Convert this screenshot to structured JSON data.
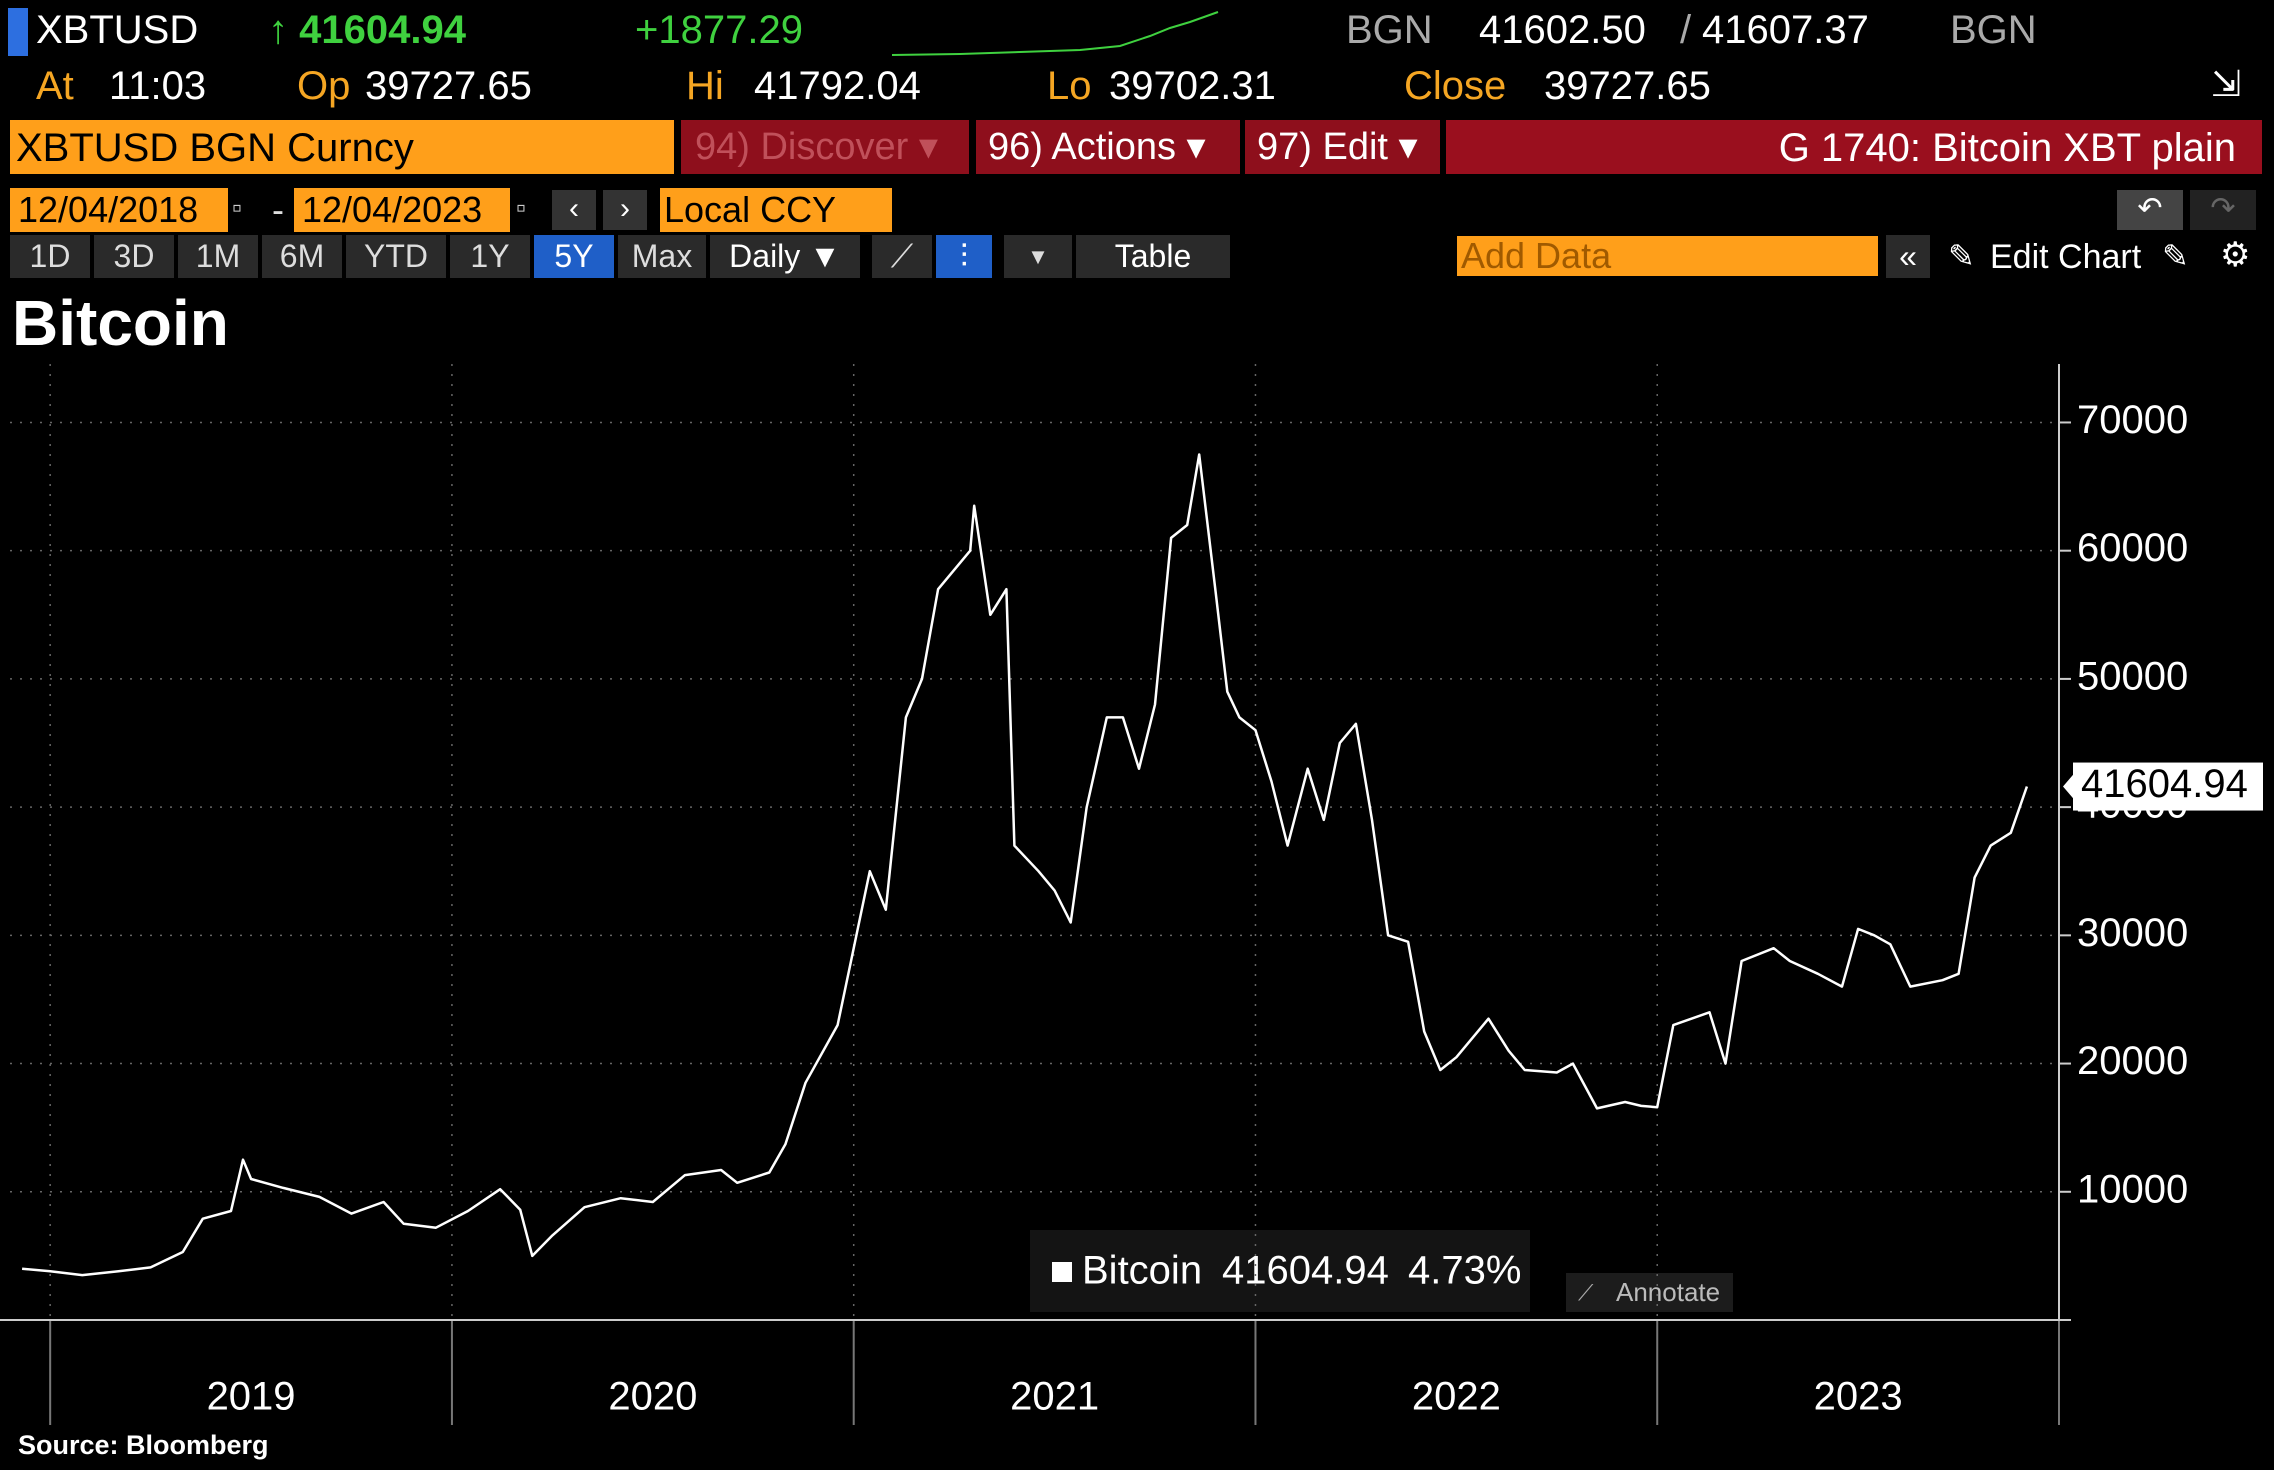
{
  "header": {
    "symbol": "XBTUSD",
    "last": "↑ 41604.94",
    "change": "+1877.29",
    "source": "BGN",
    "bid": "41602.50",
    "separator": "/",
    "ask": "41607.37",
    "source2": "BGN",
    "time_label": "At",
    "time": "11:03",
    "open_label": "Op",
    "open": "39727.65",
    "hi_label": "Hi",
    "hi": "41792.04",
    "lo_label": "Lo",
    "lo": "39702.31",
    "close_label": "Close",
    "close": "39727.65"
  },
  "toolbar": {
    "security": "XBTUSD BGN Curncy",
    "discover": "94) Discover ▾",
    "actions": "96) Actions ▾",
    "edit": "97) Edit ▾",
    "chart_name": "G 1740: Bitcoin XBT plain",
    "date_start": "12/04/2018",
    "date_dash": "-",
    "date_end": "12/04/2023",
    "currency": "Local CCY",
    "ranges": [
      "1D",
      "3D",
      "1M",
      "6M",
      "YTD",
      "1Y",
      "5Y",
      "Max"
    ],
    "frequency": "Daily ▼",
    "table": "Table",
    "add_data": "Add Data",
    "edit_chart": "Edit Chart"
  },
  "chart_data": {
    "type": "line",
    "title": "Bitcoin",
    "source": "Source: Bloomberg",
    "grid": true,
    "xlim": [
      2018.9,
      2024.0
    ],
    "xticks": [
      {
        "value": 2019.5,
        "label": "2019"
      },
      {
        "value": 2020.5,
        "label": "2020"
      },
      {
        "value": 2021.5,
        "label": "2021"
      },
      {
        "value": 2022.5,
        "label": "2022"
      },
      {
        "value": 2023.5,
        "label": "2023"
      }
    ],
    "ylim": [
      0,
      73000
    ],
    "yticks": [
      10000,
      20000,
      30000,
      40000,
      50000,
      60000,
      70000
    ],
    "series": [
      {
        "name": "Bitcoin",
        "color": "#ffffff",
        "x": [
          2018.93,
          2019.0,
          2019.08,
          2019.17,
          2019.25,
          2019.33,
          2019.38,
          2019.45,
          2019.48,
          2019.5,
          2019.58,
          2019.67,
          2019.75,
          2019.83,
          2019.88,
          2019.96,
          2020.04,
          2020.12,
          2020.17,
          2020.2,
          2020.25,
          2020.33,
          2020.42,
          2020.5,
          2020.58,
          2020.67,
          2020.71,
          2020.79,
          2020.83,
          2020.88,
          2020.96,
          2021.0,
          2021.04,
          2021.08,
          2021.13,
          2021.17,
          2021.21,
          2021.29,
          2021.3,
          2021.34,
          2021.38,
          2021.4,
          2021.46,
          2021.5,
          2021.54,
          2021.58,
          2021.63,
          2021.67,
          2021.71,
          2021.75,
          2021.79,
          2021.83,
          2021.86,
          2021.9,
          2021.93,
          2021.96,
          2022.0,
          2022.04,
          2022.08,
          2022.13,
          2022.17,
          2022.21,
          2022.25,
          2022.29,
          2022.33,
          2022.38,
          2022.42,
          2022.46,
          2022.5,
          2022.58,
          2022.63,
          2022.67,
          2022.75,
          2022.79,
          2022.85,
          2022.92,
          2022.96,
          2023.0,
          2023.04,
          2023.13,
          2023.17,
          2023.21,
          2023.29,
          2023.33,
          2023.4,
          2023.46,
          2023.5,
          2023.54,
          2023.58,
          2023.63,
          2023.71,
          2023.75,
          2023.79,
          2023.83,
          2023.88,
          2023.92
        ],
        "values": [
          4000,
          3800,
          3500,
          3800,
          4100,
          5300,
          7900,
          8500,
          12500,
          11000,
          10300,
          9600,
          8300,
          9200,
          7500,
          7200,
          8500,
          10200,
          8600,
          5000,
          6600,
          8800,
          9500,
          9200,
          11300,
          11700,
          10700,
          11500,
          13700,
          18500,
          23000,
          29000,
          35000,
          32000,
          47000,
          50000,
          57000,
          60000,
          63500,
          55000,
          57000,
          37000,
          35000,
          33500,
          31000,
          40000,
          47000,
          47000,
          43000,
          48000,
          61000,
          62000,
          67500,
          57000,
          49000,
          47000,
          46000,
          42000,
          37000,
          43000,
          39000,
          45000,
          46500,
          39000,
          30000,
          29500,
          22500,
          19500,
          20500,
          23500,
          21000,
          19500,
          19300,
          20000,
          16500,
          17000,
          16700,
          16600,
          23000,
          24000,
          20000,
          28000,
          29000,
          28000,
          27000,
          26000,
          30500,
          30000,
          29300,
          26000,
          26500,
          27000,
          34500,
          37000,
          38000,
          41604.94
        ]
      }
    ],
    "last_value_label": "41604.94",
    "legend_value": "41604.94",
    "legend_change": "4.73%",
    "annotate": "Annotate"
  }
}
